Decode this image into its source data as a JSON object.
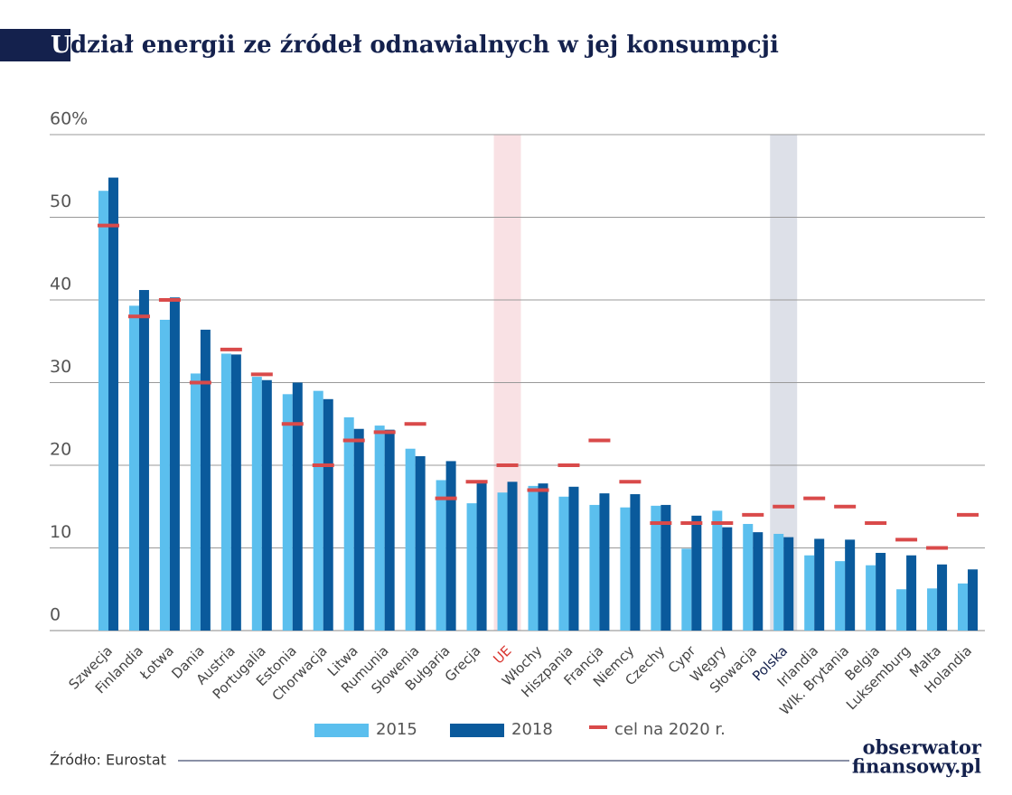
{
  "chart_data": {
    "type": "bar",
    "title_first": "U",
    "title": "dział energii ze źródeł odnawialnych w jej konsumpcji",
    "categories": [
      "Szwecja",
      "Finlandia",
      "Łotwa",
      "Dania",
      "Austria",
      "Portugalia",
      "Estonia",
      "Chorwacja",
      "Litwa",
      "Rumunia",
      "Słowenia",
      "Bułgaria",
      "Grecja",
      "UE",
      "Włochy",
      "Hiszpania",
      "Francja",
      "Niemcy",
      "Czechy",
      "Cypr",
      "Węgry",
      "Słowacja",
      "Polska",
      "Irlandia",
      "Wlk. Brytania",
      "Belgia",
      "Luksemburg",
      "Malta",
      "Holandia"
    ],
    "series": [
      {
        "name": "2015",
        "color": "#5bbfee",
        "mark": "bar",
        "values": [
          53.2,
          39.3,
          37.6,
          31.1,
          33.5,
          30.7,
          28.6,
          29.0,
          25.8,
          24.8,
          22.0,
          18.2,
          15.4,
          16.7,
          17.5,
          16.2,
          15.2,
          14.9,
          15.1,
          9.9,
          14.5,
          12.9,
          11.7,
          9.1,
          8.4,
          7.9,
          5.0,
          5.1,
          5.7
        ]
      },
      {
        "name": "2018",
        "color": "#0a5a9c",
        "mark": "bar",
        "values": [
          54.8,
          41.2,
          40.3,
          36.4,
          33.4,
          30.3,
          30.0,
          28.0,
          24.4,
          24.3,
          21.1,
          20.5,
          18.0,
          18.0,
          17.8,
          17.4,
          16.6,
          16.5,
          15.2,
          13.9,
          12.5,
          11.9,
          11.3,
          11.1,
          11.0,
          9.4,
          9.1,
          8.0,
          7.4
        ]
      },
      {
        "name": "cel na 2020 r.",
        "color": "#d94a4a",
        "mark": "dash",
        "values": [
          49,
          38,
          40,
          30,
          34,
          31,
          25,
          20,
          23,
          24,
          25,
          16,
          18,
          20,
          17,
          20,
          23,
          18,
          13,
          13,
          13,
          14,
          15,
          16,
          15,
          13,
          11,
          10,
          14
        ]
      }
    ],
    "highlights": [
      {
        "index": 13,
        "color": "#f9e1e4",
        "label_color": "#d9352f"
      },
      {
        "index": 22,
        "color": "#dde0e8",
        "label_color": "#14214d"
      }
    ],
    "ylim": [
      0,
      60
    ],
    "yticks": [
      0,
      10,
      20,
      30,
      40,
      50,
      {
        "value": 60,
        "label": "60%"
      }
    ],
    "grid": true,
    "legend": "bottom",
    "source": "Źródło: Eurostat",
    "logo": [
      "obserwator",
      "finansowy.pl"
    ]
  }
}
